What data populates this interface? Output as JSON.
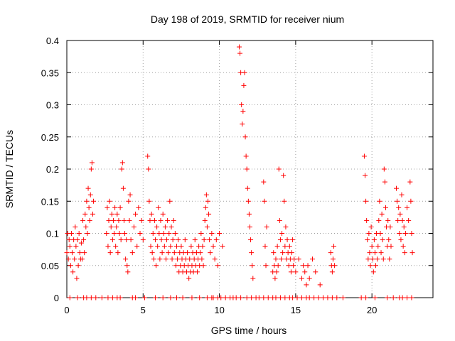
{
  "chart_data": {
    "type": "scatter",
    "title": "Day 198 of 2019, SRMTID for receiver nium",
    "xlabel": "GPS time / hours",
    "ylabel": "SRMTID / TECUs",
    "xlim": [
      0,
      24
    ],
    "ylim": [
      0,
      0.4
    ],
    "grid": true,
    "marker": "plus",
    "color": "#ff0000",
    "xticks": [
      0,
      5,
      10,
      15,
      20
    ],
    "xtick_labels": [
      "0",
      "5",
      "10",
      "15",
      "20"
    ],
    "yticks": [
      0,
      0.05,
      0.1,
      0.15,
      0.2,
      0.25,
      0.3,
      0.35,
      0.4
    ],
    "ytick_labels": [
      "0",
      "0.05",
      "0.1",
      "0.15",
      "0.2",
      "0.25",
      "0.3",
      "0.35",
      "0.4"
    ],
    "series": [
      {
        "name": "SRMTID",
        "points": [
          [
            0.0,
            0.07
          ],
          [
            0.05,
            0.1
          ],
          [
            0.1,
            0.06
          ],
          [
            0.15,
            0.09
          ],
          [
            0.2,
            0.08
          ],
          [
            0.25,
            0.05
          ],
          [
            0.3,
            0.1
          ],
          [
            0.35,
            0.07
          ],
          [
            0.4,
            0.04
          ],
          [
            0.45,
            0.09
          ],
          [
            0.5,
            0.06
          ],
          [
            0.55,
            0.11
          ],
          [
            0.6,
            0.08
          ],
          [
            0.65,
            0.03
          ],
          [
            0.7,
            0.09
          ],
          [
            0.75,
            0.05
          ],
          [
            0.8,
            0.1
          ],
          [
            0.85,
            0.07
          ],
          [
            0.9,
            0.06
          ],
          [
            0.95,
            0.085
          ],
          [
            1.0,
            0.06
          ],
          [
            1.05,
            0.12
          ],
          [
            1.1,
            0.09
          ],
          [
            1.15,
            0.07
          ],
          [
            1.2,
            0.13
          ],
          [
            1.25,
            0.11
          ],
          [
            1.3,
            0.15
          ],
          [
            1.35,
            0.1
          ],
          [
            1.4,
            0.17
          ],
          [
            1.45,
            0.14
          ],
          [
            1.5,
            0.12
          ],
          [
            1.55,
            0.16
          ],
          [
            1.6,
            0.2
          ],
          [
            1.65,
            0.21
          ],
          [
            1.7,
            0.13
          ],
          [
            1.75,
            0.15
          ],
          [
            2.6,
            0.1
          ],
          [
            2.65,
            0.14
          ],
          [
            2.7,
            0.08
          ],
          [
            2.75,
            0.12
          ],
          [
            2.8,
            0.15
          ],
          [
            2.85,
            0.07
          ],
          [
            2.9,
            0.11
          ],
          [
            2.95,
            0.13
          ],
          [
            3.0,
            0.09
          ],
          [
            3.05,
            0.12
          ],
          [
            3.1,
            0.1
          ],
          [
            3.15,
            0.14
          ],
          [
            3.2,
            0.08
          ],
          [
            3.25,
            0.11
          ],
          [
            3.3,
            0.13
          ],
          [
            3.35,
            0.07
          ],
          [
            3.4,
            0.12
          ],
          [
            3.45,
            0.1
          ],
          [
            3.5,
            0.14
          ],
          [
            3.55,
            0.09
          ],
          [
            3.6,
            0.2
          ],
          [
            3.65,
            0.21
          ],
          [
            3.7,
            0.17
          ],
          [
            3.75,
            0.12
          ],
          [
            3.8,
            0.1
          ],
          [
            3.85,
            0.06
          ],
          [
            3.9,
            0.09
          ],
          [
            3.95,
            0.05
          ],
          [
            4.0,
            0.04
          ],
          [
            4.05,
            0.15
          ],
          [
            4.1,
            0.12
          ],
          [
            4.15,
            0.16
          ],
          [
            4.2,
            0.09
          ],
          [
            4.3,
            0.07
          ],
          [
            4.4,
            0.11
          ],
          [
            4.5,
            0.13
          ],
          [
            4.6,
            0.08
          ],
          [
            4.7,
            0.14
          ],
          [
            4.8,
            0.1
          ],
          [
            4.9,
            0.12
          ],
          [
            5.0,
            0.09
          ],
          [
            5.3,
            0.22
          ],
          [
            5.35,
            0.2
          ],
          [
            5.4,
            0.15
          ],
          [
            5.45,
            0.12
          ],
          [
            5.5,
            0.08
          ],
          [
            5.55,
            0.13
          ],
          [
            5.6,
            0.07
          ],
          [
            5.65,
            0.1
          ],
          [
            5.7,
            0.06
          ],
          [
            5.75,
            0.12
          ],
          [
            5.8,
            0.09
          ],
          [
            5.85,
            0.05
          ],
          [
            5.9,
            0.11
          ],
          [
            5.95,
            0.08
          ],
          [
            6.0,
            0.14
          ],
          [
            6.05,
            0.1
          ],
          [
            6.1,
            0.06
          ],
          [
            6.15,
            0.12
          ],
          [
            6.2,
            0.09
          ],
          [
            6.25,
            0.07
          ],
          [
            6.3,
            0.13
          ],
          [
            6.35,
            0.1
          ],
          [
            6.4,
            0.08
          ],
          [
            6.45,
            0.11
          ],
          [
            6.5,
            0.06
          ],
          [
            6.55,
            0.09
          ],
          [
            6.6,
            0.12
          ],
          [
            6.65,
            0.07
          ],
          [
            6.7,
            0.1
          ],
          [
            6.75,
            0.15
          ],
          [
            6.8,
            0.08
          ],
          [
            6.85,
            0.11
          ],
          [
            6.9,
            0.06
          ],
          [
            6.95,
            0.09
          ],
          [
            7.0,
            0.12
          ],
          [
            7.05,
            0.07
          ],
          [
            7.1,
            0.1
          ],
          [
            7.15,
            0.05
          ],
          [
            7.2,
            0.08
          ],
          [
            7.25,
            0.06
          ],
          [
            7.3,
            0.09
          ],
          [
            7.35,
            0.04
          ],
          [
            7.4,
            0.07
          ],
          [
            7.45,
            0.05
          ],
          [
            7.5,
            0.08
          ],
          [
            7.55,
            0.06
          ],
          [
            7.6,
            0.04
          ],
          [
            7.65,
            0.07
          ],
          [
            7.7,
            0.05
          ],
          [
            7.75,
            0.09
          ],
          [
            7.8,
            0.06
          ],
          [
            7.85,
            0.04
          ],
          [
            7.9,
            0.07
          ],
          [
            7.95,
            0.05
          ],
          [
            8.0,
            0.03
          ],
          [
            8.05,
            0.06
          ],
          [
            8.1,
            0.04
          ],
          [
            8.15,
            0.08
          ],
          [
            8.2,
            0.05
          ],
          [
            8.25,
            0.07
          ],
          [
            8.3,
            0.04
          ],
          [
            8.35,
            0.06
          ],
          [
            8.4,
            0.09
          ],
          [
            8.45,
            0.05
          ],
          [
            8.5,
            0.07
          ],
          [
            8.55,
            0.04
          ],
          [
            8.6,
            0.06
          ],
          [
            8.65,
            0.08
          ],
          [
            8.7,
            0.05
          ],
          [
            8.75,
            0.07
          ],
          [
            8.8,
            0.1
          ],
          [
            8.85,
            0.06
          ],
          [
            8.9,
            0.08
          ],
          [
            8.95,
            0.05
          ],
          [
            9.0,
            0.09
          ],
          [
            9.05,
            0.12
          ],
          [
            9.1,
            0.14
          ],
          [
            9.15,
            0.16
          ],
          [
            9.2,
            0.11
          ],
          [
            9.25,
            0.15
          ],
          [
            9.3,
            0.13
          ],
          [
            9.35,
            0.09
          ],
          [
            9.4,
            0.07
          ],
          [
            9.5,
            0.1
          ],
          [
            9.6,
            0.08
          ],
          [
            9.7,
            0.06
          ],
          [
            9.8,
            0.09
          ],
          [
            9.9,
            0.05
          ],
          [
            10.0,
            0.1
          ],
          [
            10.2,
            0.08
          ],
          [
            11.3,
            0.39
          ],
          [
            11.35,
            0.38
          ],
          [
            11.4,
            0.35
          ],
          [
            11.45,
            0.3
          ],
          [
            11.5,
            0.27
          ],
          [
            11.55,
            0.29
          ],
          [
            11.6,
            0.33
          ],
          [
            11.65,
            0.35
          ],
          [
            11.7,
            0.25
          ],
          [
            11.75,
            0.22
          ],
          [
            11.8,
            0.2
          ],
          [
            11.85,
            0.17
          ],
          [
            11.9,
            0.15
          ],
          [
            11.95,
            0.13
          ],
          [
            12.0,
            0.11
          ],
          [
            12.05,
            0.09
          ],
          [
            12.1,
            0.07
          ],
          [
            12.15,
            0.05
          ],
          [
            12.2,
            0.03
          ],
          [
            12.9,
            0.18
          ],
          [
            12.95,
            0.15
          ],
          [
            13.0,
            0.08
          ],
          [
            13.05,
            0.05
          ],
          [
            13.1,
            0.11
          ],
          [
            13.5,
            0.04
          ],
          [
            13.55,
            0.07
          ],
          [
            13.6,
            0.05
          ],
          [
            13.65,
            0.03
          ],
          [
            13.7,
            0.06
          ],
          [
            13.75,
            0.04
          ],
          [
            13.8,
            0.08
          ],
          [
            13.85,
            0.05
          ],
          [
            13.9,
            0.2
          ],
          [
            13.95,
            0.12
          ],
          [
            14.0,
            0.09
          ],
          [
            14.05,
            0.06
          ],
          [
            14.1,
            0.1
          ],
          [
            14.15,
            0.07
          ],
          [
            14.2,
            0.19
          ],
          [
            14.25,
            0.15
          ],
          [
            14.3,
            0.08
          ],
          [
            14.35,
            0.11
          ],
          [
            14.4,
            0.06
          ],
          [
            14.45,
            0.09
          ],
          [
            14.5,
            0.07
          ],
          [
            14.55,
            0.05
          ],
          [
            14.6,
            0.08
          ],
          [
            14.65,
            0.06
          ],
          [
            14.7,
            0.04
          ],
          [
            14.75,
            0.07
          ],
          [
            14.8,
            0.09
          ],
          [
            14.85,
            0.05
          ],
          [
            14.9,
            0.06
          ],
          [
            15.0,
            0.04
          ],
          [
            15.2,
            0.06
          ],
          [
            15.4,
            0.03
          ],
          [
            15.5,
            0.05
          ],
          [
            15.6,
            0.04
          ],
          [
            15.7,
            0.02
          ],
          [
            15.8,
            0.05
          ],
          [
            15.9,
            0.03
          ],
          [
            16.1,
            0.06
          ],
          [
            16.3,
            0.04
          ],
          [
            16.6,
            0.02
          ],
          [
            17.3,
            0.07
          ],
          [
            17.35,
            0.05
          ],
          [
            17.4,
            0.04
          ],
          [
            17.45,
            0.06
          ],
          [
            17.5,
            0.08
          ],
          [
            17.55,
            0.05
          ],
          [
            19.5,
            0.22
          ],
          [
            19.55,
            0.19
          ],
          [
            19.6,
            0.15
          ],
          [
            19.65,
            0.12
          ],
          [
            19.7,
            0.09
          ],
          [
            19.75,
            0.06
          ],
          [
            19.8,
            0.1
          ],
          [
            19.85,
            0.07
          ],
          [
            19.9,
            0.05
          ],
          [
            19.95,
            0.11
          ],
          [
            20.0,
            0.08
          ],
          [
            20.05,
            0.06
          ],
          [
            20.1,
            0.04
          ],
          [
            20.15,
            0.09
          ],
          [
            20.2,
            0.07
          ],
          [
            20.25,
            0.05
          ],
          [
            20.3,
            0.1
          ],
          [
            20.35,
            0.06
          ],
          [
            20.4,
            0.08
          ],
          [
            20.45,
            0.12
          ],
          [
            20.5,
            0.15
          ],
          [
            20.55,
            0.1
          ],
          [
            20.6,
            0.07
          ],
          [
            20.65,
            0.13
          ],
          [
            20.7,
            0.09
          ],
          [
            20.75,
            0.06
          ],
          [
            20.8,
            0.2
          ],
          [
            20.85,
            0.18
          ],
          [
            20.9,
            0.14
          ],
          [
            20.95,
            0.11
          ],
          [
            21.0,
            0.08
          ],
          [
            21.05,
            0.12
          ],
          [
            21.1,
            0.09
          ],
          [
            21.15,
            0.06
          ],
          [
            21.2,
            0.11
          ],
          [
            21.25,
            0.08
          ],
          [
            21.6,
            0.17
          ],
          [
            21.65,
            0.15
          ],
          [
            21.7,
            0.12
          ],
          [
            21.75,
            0.14
          ],
          [
            21.8,
            0.1
          ],
          [
            21.85,
            0.13
          ],
          [
            21.9,
            0.09
          ],
          [
            21.95,
            0.16
          ],
          [
            22.0,
            0.12
          ],
          [
            22.05,
            0.08
          ],
          [
            22.1,
            0.11
          ],
          [
            22.15,
            0.07
          ],
          [
            22.2,
            0.1
          ],
          [
            22.3,
            0.14
          ],
          [
            22.4,
            0.12
          ],
          [
            22.5,
            0.18
          ],
          [
            22.55,
            0.15
          ],
          [
            22.6,
            0.1
          ],
          [
            22.65,
            0.07
          ]
        ],
        "zero_points": [
          0.2,
          0.7,
          1.1,
          1.3,
          1.6,
          1.9,
          2.3,
          2.7,
          3.0,
          3.3,
          3.5,
          4.3,
          4.5,
          5.1,
          5.8,
          6.3,
          6.8,
          7.2,
          7.6,
          8.2,
          8.7,
          9.2,
          9.5,
          9.6,
          9.9,
          10.1,
          10.4,
          10.7,
          10.9,
          11.1,
          11.4,
          11.8,
          12.1,
          12.4,
          12.6,
          12.9,
          13.2,
          13.5,
          13.7,
          14.0,
          14.3,
          14.6,
          14.8,
          15.1,
          15.4,
          15.7,
          15.9,
          16.2,
          16.5,
          16.8,
          17.1,
          17.4,
          17.7,
          18.1,
          19.3,
          19.6,
          20.2,
          21.0,
          21.4,
          21.8,
          22.0,
          22.3,
          22.6
        ]
      }
    ]
  }
}
